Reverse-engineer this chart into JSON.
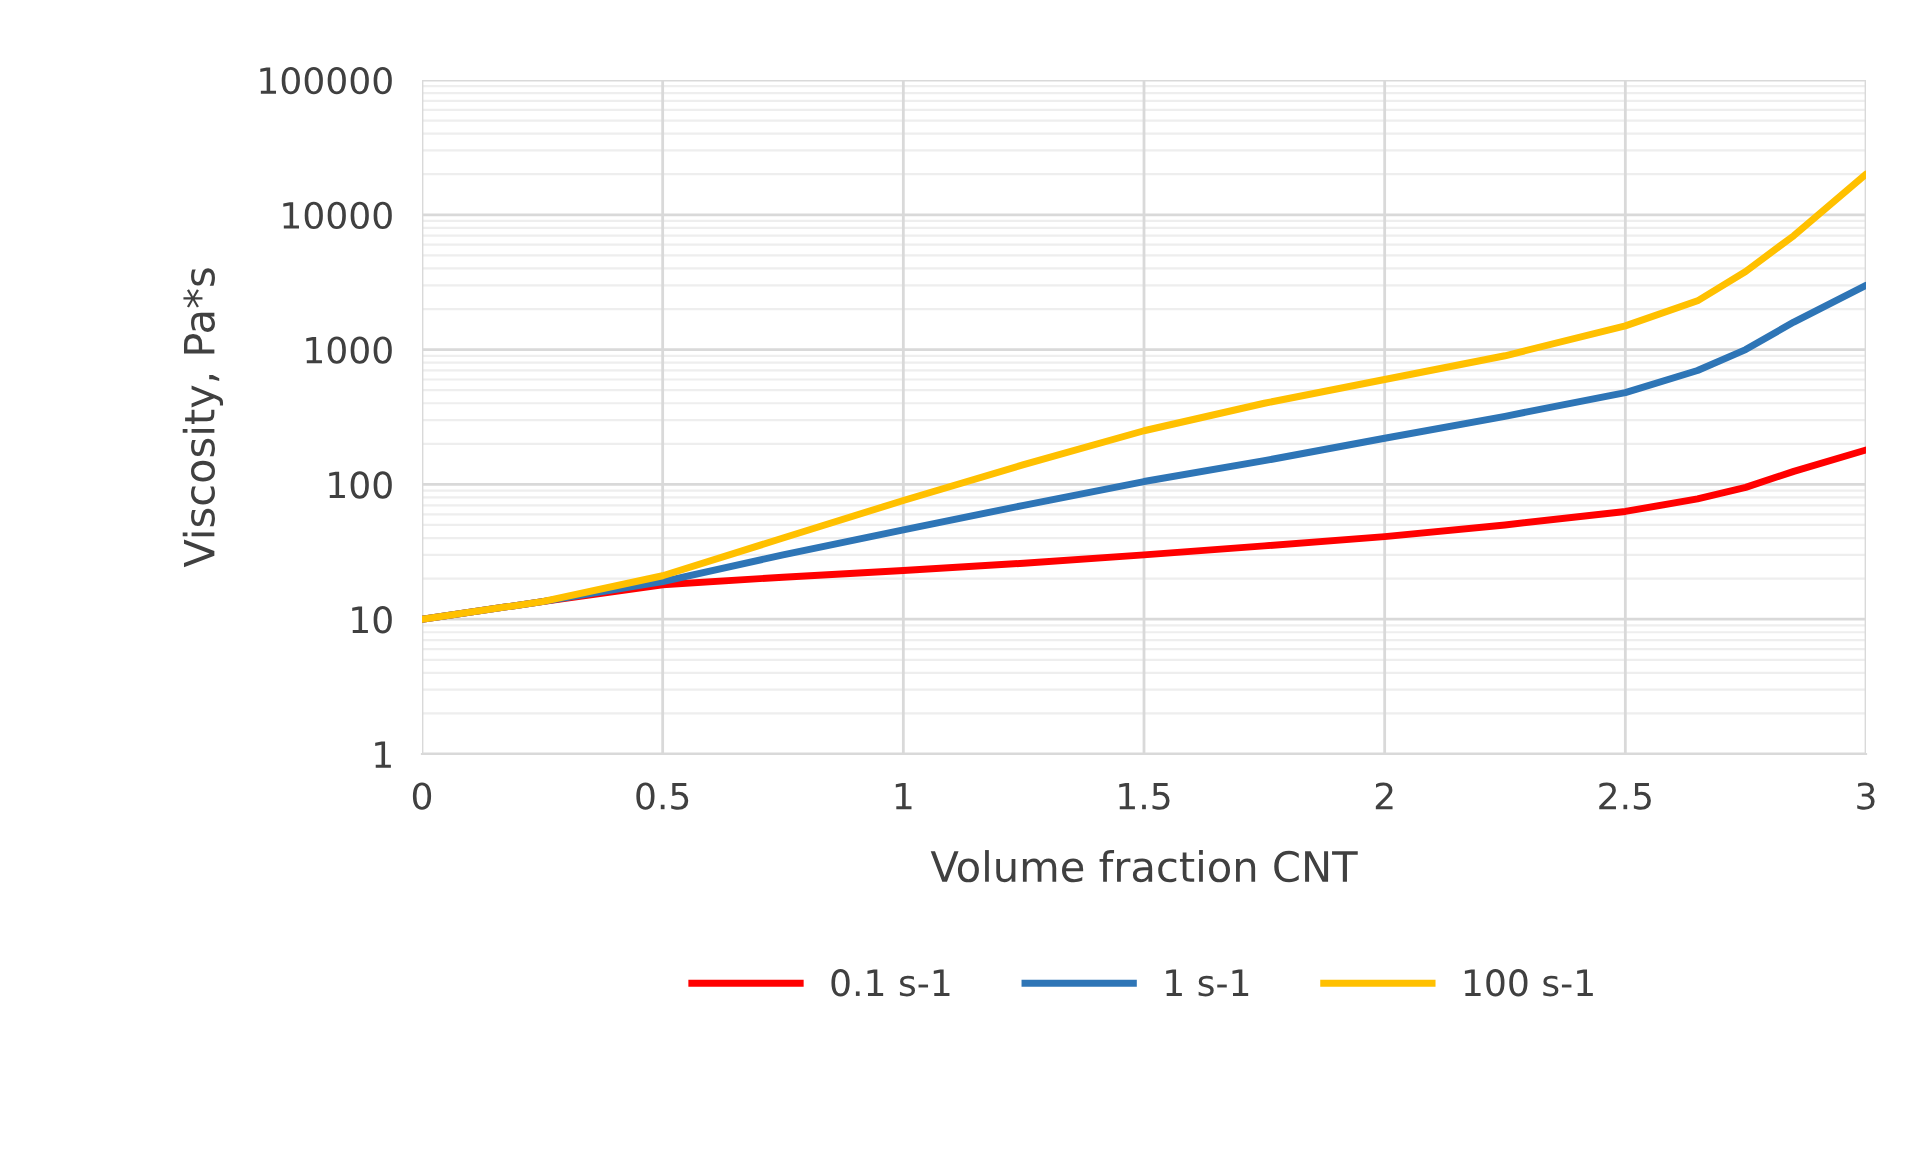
{
  "chart_data": {
    "type": "line",
    "xlabel": "Volume fraction CNT",
    "ylabel": "Viscosity, Pa*s",
    "x": [
      0,
      0.25,
      0.5,
      0.75,
      1,
      1.25,
      1.5,
      1.75,
      2,
      2.25,
      2.5,
      2.65,
      2.75,
      2.85,
      3
    ],
    "series": [
      {
        "name": "0.1 s-1",
        "color": "#ff0000",
        "values": [
          10,
          13.5,
          18,
          20.5,
          23,
          26,
          30,
          35,
          41,
          50,
          63,
          78,
          95,
          125,
          180
        ]
      },
      {
        "name": "1 s-1",
        "color": "#2e75b6",
        "values": [
          10,
          13.5,
          19,
          30,
          46,
          70,
          105,
          150,
          220,
          320,
          480,
          700,
          1000,
          1600,
          3000
        ]
      },
      {
        "name": "100 s-1",
        "color": "#ffc000",
        "values": [
          10,
          13.5,
          21,
          40,
          76,
          140,
          250,
          400,
          600,
          900,
          1500,
          2300,
          3800,
          7000,
          20000
        ]
      }
    ],
    "xlim": [
      0,
      3
    ],
    "xticks": [
      0,
      0.5,
      1,
      1.5,
      2,
      2.5,
      3
    ],
    "log": "y",
    "ylim": [
      1,
      100000
    ],
    "yticks": [
      1,
      10,
      100,
      1000,
      10000,
      100000
    ],
    "grid": true,
    "legend": "bottom",
    "marker": "none",
    "line_style": "solid"
  }
}
